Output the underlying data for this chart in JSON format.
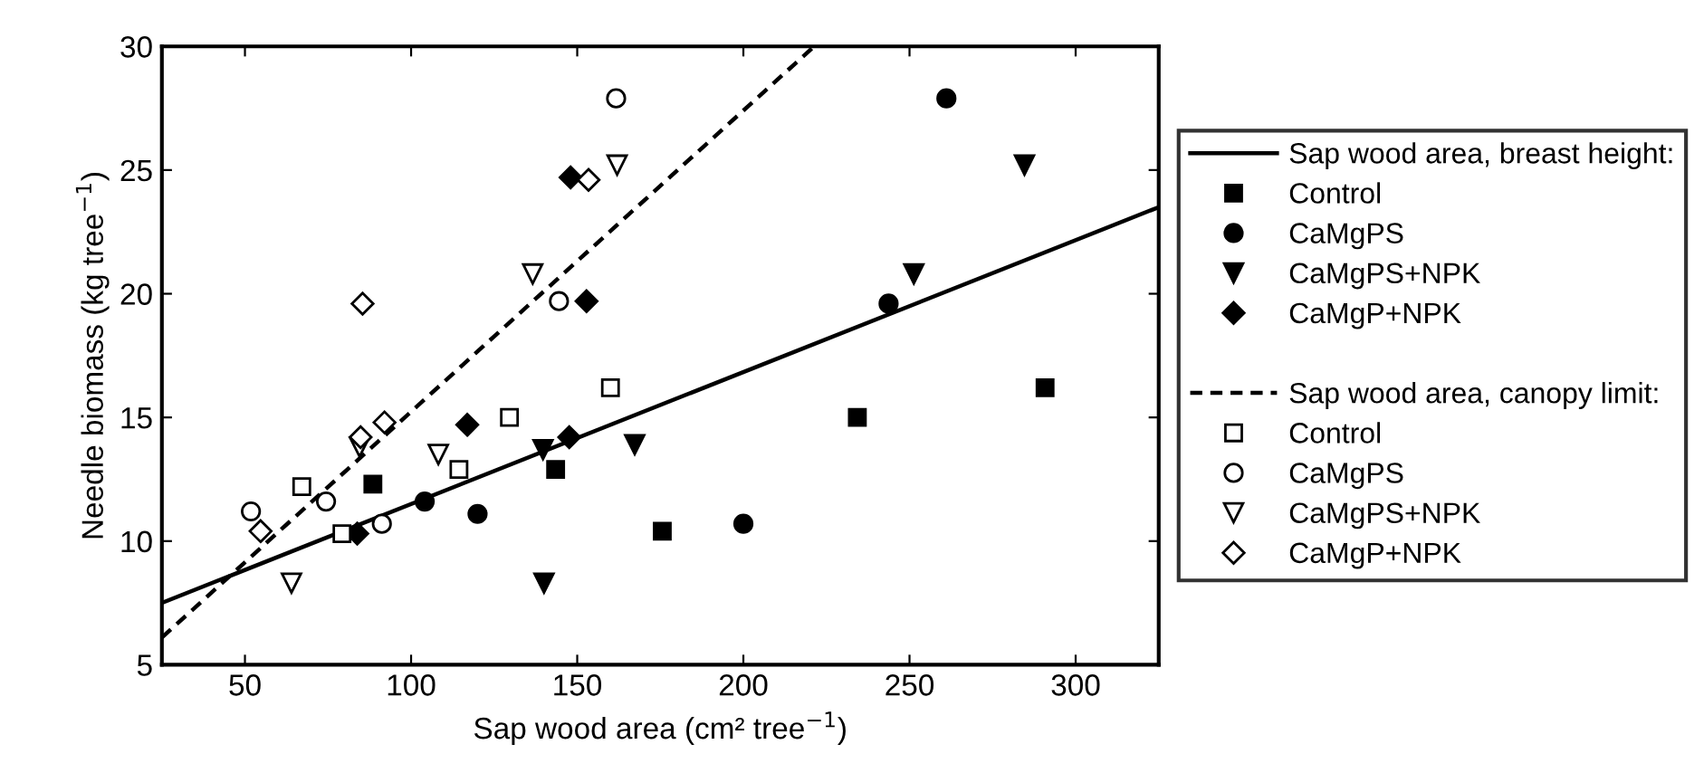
{
  "chart_data": {
    "type": "scatter",
    "xlabel": "Sap wood area (cm² tree$^{−1}$)",
    "ylabel": "Needle biomass (kg tree$^{−1}$)",
    "xlim": [
      25,
      325
    ],
    "ylim": [
      5,
      30
    ],
    "xticks": [
      50,
      100,
      150,
      200,
      250,
      300
    ],
    "yticks": [
      5,
      10,
      15,
      20,
      25,
      30
    ],
    "grid": false,
    "legend": "right",
    "series": [
      {
        "name": "Sap wood area, breast height:",
        "type": "line",
        "line_style": "solid",
        "marker": "none",
        "color": "#000000",
        "x": [
          25,
          325
        ],
        "values": [
          7.5,
          23.5
        ]
      },
      {
        "name": "Control",
        "marker": "square",
        "color": "#000000",
        "x": [
          88.5,
          143.5,
          175.6,
          234.3,
          290.8
        ],
        "values": [
          12.3,
          12.9,
          10.4,
          15.0,
          16.2
        ]
      },
      {
        "name": "CaMgPS",
        "marker": "circle",
        "color": "#000000",
        "x": [
          104.1,
          120,
          200,
          243.7,
          261.1
        ],
        "values": [
          11.6,
          11.1,
          10.7,
          19.6,
          27.9
        ]
      },
      {
        "name": "CaMgPS+NPK",
        "marker": "triangle",
        "color": "#000000",
        "x": [
          139.7,
          140,
          167.3,
          251.3,
          284.6
        ],
        "values": [
          13.7,
          8.3,
          13.9,
          20.8,
          25.2
        ]
      },
      {
        "name": "CaMgP+NPK",
        "marker": "diamond",
        "color": "#000000",
        "x": [
          83.8,
          116.9,
          147.6,
          148,
          152.8
        ],
        "values": [
          10.3,
          14.7,
          14.2,
          24.7,
          19.7
        ]
      },
      {
        "name": "Sap wood area, canopy limit:",
        "type": "line",
        "line_style": "dashed",
        "marker": "none",
        "color": "#000000",
        "x": [
          25,
          221.3
        ],
        "values": [
          6.1,
          30
        ]
      },
      {
        "name": "Control",
        "marker": "square",
        "color": "#ffffff",
        "x": [
          67.1,
          79.2,
          114.4,
          129.6,
          160
        ],
        "values": [
          12.2,
          10.3,
          12.9,
          15.0,
          16.2
        ]
      },
      {
        "name": "CaMgPS",
        "marker": "circle",
        "color": "#ffffff",
        "x": [
          51.8,
          74.4,
          91.2,
          144.5,
          161.7
        ],
        "values": [
          11.2,
          11.6,
          10.7,
          19.7,
          27.9
        ]
      },
      {
        "name": "CaMgPS+NPK",
        "marker": "triangle",
        "color": "#ffffff",
        "x": [
          64,
          84.5,
          108.2,
          136.6,
          162
        ],
        "values": [
          8.3,
          13.8,
          13.5,
          20.8,
          25.2
        ]
      },
      {
        "name": "CaMgP+NPK",
        "marker": "diamond",
        "color": "#ffffff",
        "x": [
          54.7,
          84.8,
          85.4,
          92,
          153.4
        ],
        "values": [
          10.4,
          14.2,
          19.6,
          14.8,
          24.6
        ]
      }
    ]
  }
}
